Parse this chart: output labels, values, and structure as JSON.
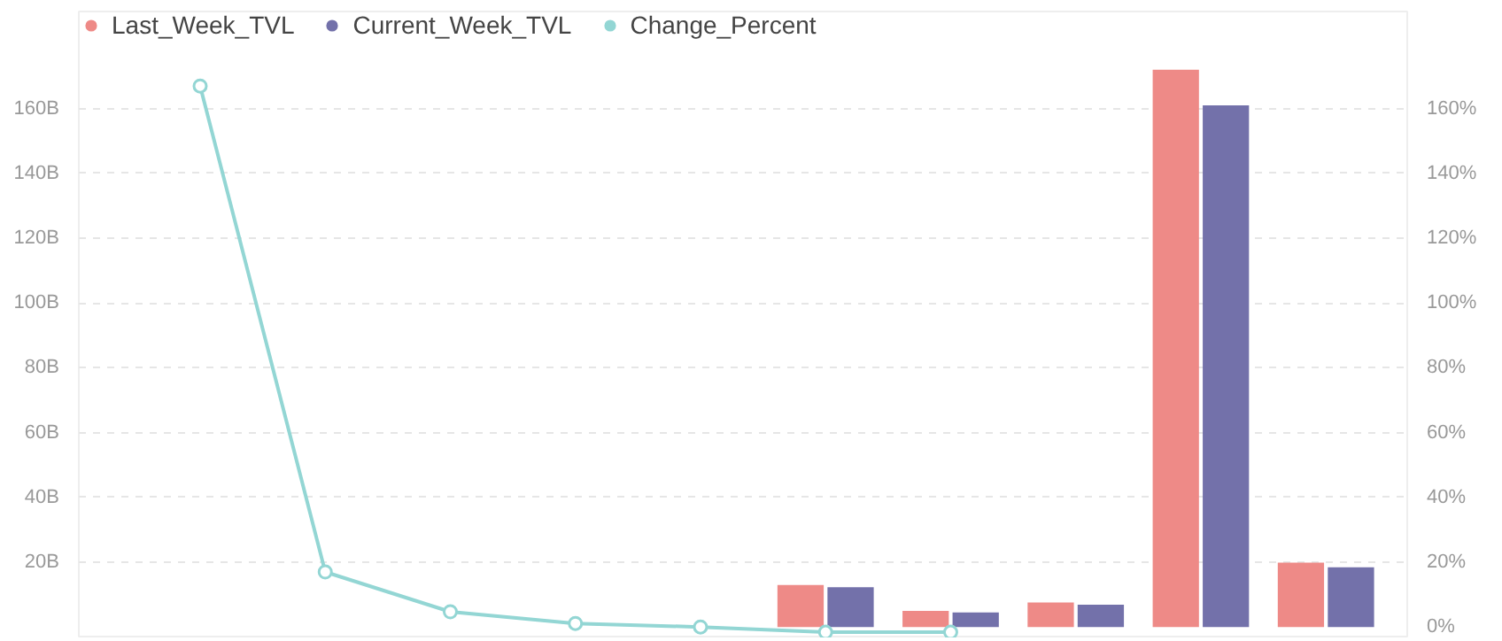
{
  "chart_data": {
    "type": "bar",
    "categories": [
      null,
      null,
      null,
      null,
      null,
      null,
      null,
      null,
      null,
      null
    ],
    "series": [
      {
        "name": "Last_Week_TVL",
        "color": "#ee8a87",
        "values": [
          null,
          null,
          null,
          null,
          null,
          13.0,
          5.0,
          7.6,
          172,
          19.9
        ]
      },
      {
        "name": "Current_Week_TVL",
        "color": "#7371aa",
        "values": [
          null,
          null,
          null,
          null,
          null,
          12.3,
          4.5,
          6.9,
          161,
          18.4
        ]
      },
      {
        "name": "Change_Percent",
        "type": "line",
        "axis": "y2",
        "color": "#93d6d4",
        "values": [
          167,
          17,
          4.7,
          1.1,
          0,
          -1.6,
          -1.6,
          null,
          null,
          null
        ]
      }
    ],
    "ylim": [
      -3.5,
      190
    ],
    "yticks": [
      {
        "value": 20,
        "label": "20B"
      },
      {
        "value": 40,
        "label": "40B"
      },
      {
        "value": 60,
        "label": "60B"
      },
      {
        "value": 80,
        "label": "80B"
      },
      {
        "value": 100,
        "label": "100B"
      },
      {
        "value": 120,
        "label": "120B"
      },
      {
        "value": 140,
        "label": "140B"
      },
      {
        "value": 160,
        "label": "160B"
      }
    ],
    "y2lim": [
      -3.5,
      190
    ],
    "y2ticks": [
      {
        "value": 0,
        "label": "0%"
      },
      {
        "value": 20,
        "label": "20%"
      },
      {
        "value": 40,
        "label": "40%"
      },
      {
        "value": 60,
        "label": "60%"
      },
      {
        "value": 80,
        "label": "80%"
      },
      {
        "value": 100,
        "label": "100%"
      },
      {
        "value": 120,
        "label": "120%"
      },
      {
        "value": 140,
        "label": "140%"
      },
      {
        "value": 160,
        "label": "160%"
      }
    ],
    "grid": "y",
    "legend": "top left",
    "marker": "circle"
  }
}
